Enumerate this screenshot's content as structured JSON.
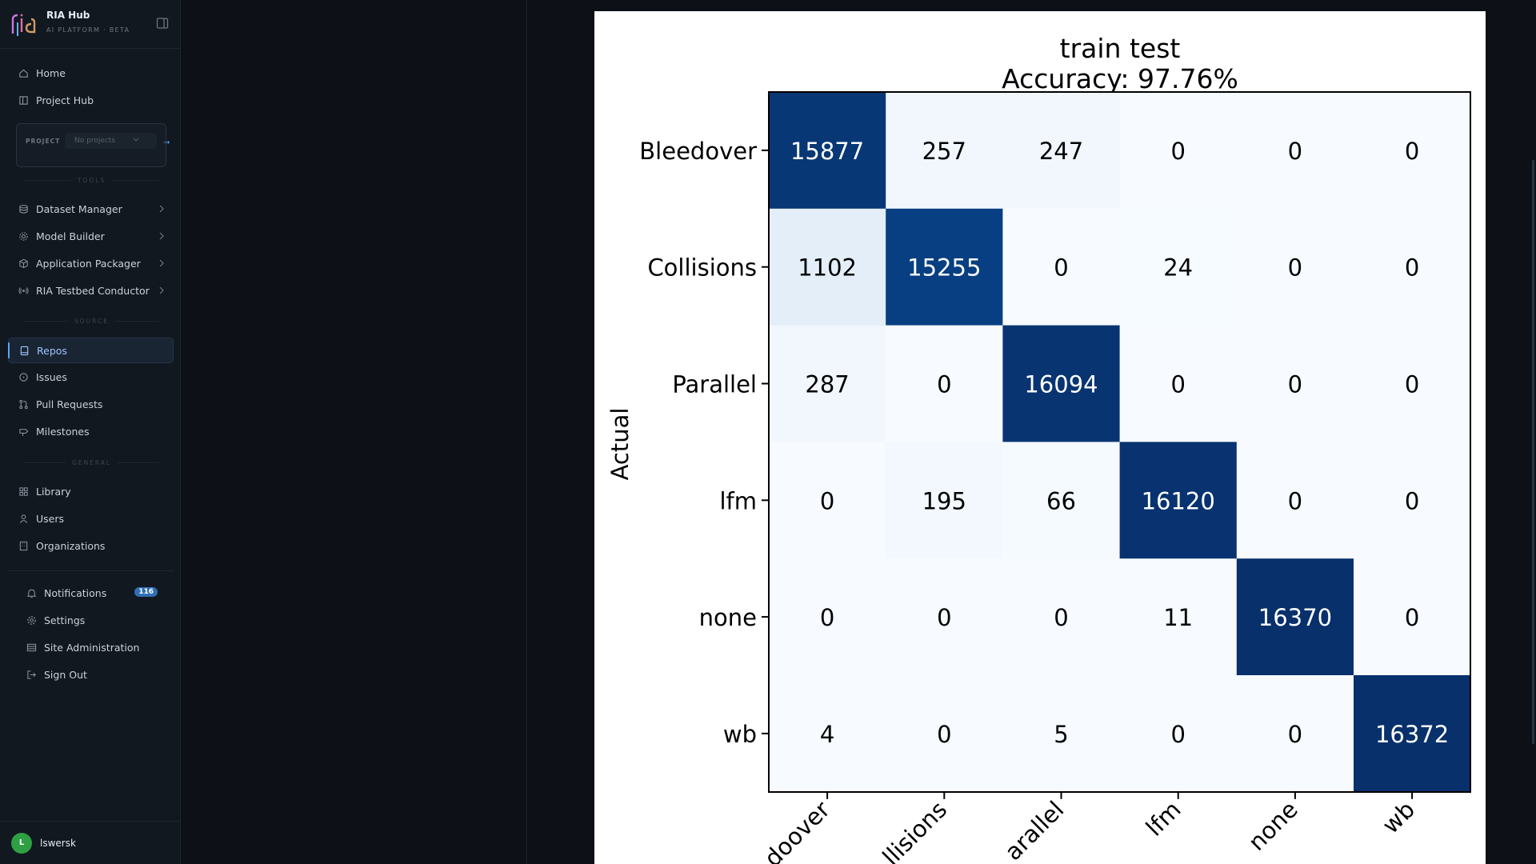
{
  "app": {
    "name": "RIA Hub",
    "subtitle": "AI PLATFORM · BETA"
  },
  "sidebar": {
    "top_items": [
      {
        "label": "Home",
        "icon": "home-icon"
      },
      {
        "label": "Project Hub",
        "icon": "board-icon"
      }
    ],
    "project": {
      "label": "PROJECT",
      "selected": "No projects",
      "go": "→"
    },
    "sections": {
      "tools": "TOOLS",
      "source": "SOURCE",
      "general": "GENERAL"
    },
    "tools_items": [
      {
        "label": "Dataset Manager",
        "icon": "database-icon"
      },
      {
        "label": "Model Builder",
        "icon": "cog-icon"
      },
      {
        "label": "Application Packager",
        "icon": "package-icon"
      },
      {
        "label": "RIA Testbed Conductor",
        "icon": "radio-icon"
      }
    ],
    "source_items": [
      {
        "label": "Repos",
        "icon": "repo-icon",
        "active": true
      },
      {
        "label": "Issues",
        "icon": "issue-icon"
      },
      {
        "label": "Pull Requests",
        "icon": "pull-request-icon"
      },
      {
        "label": "Milestones",
        "icon": "milestone-icon"
      }
    ],
    "general_items": [
      {
        "label": "Library",
        "icon": "grid-icon"
      },
      {
        "label": "Users",
        "icon": "user-icon"
      },
      {
        "label": "Organizations",
        "icon": "building-icon"
      }
    ],
    "bottom_items": [
      {
        "label": "Notifications",
        "icon": "bell-icon",
        "badge": "116"
      },
      {
        "label": "Settings",
        "icon": "gear-icon"
      },
      {
        "label": "Site Administration",
        "icon": "server-icon"
      },
      {
        "label": "Sign Out",
        "icon": "sign-out-icon"
      }
    ],
    "user": {
      "initial": "L",
      "name": "lswersk"
    }
  },
  "colors": {
    "accent": "#58a6ff",
    "badge": "#2f6fb5",
    "avatar": "#2ea043",
    "heatmap_high": "#08306b",
    "heatmap_low": "#f7fbff"
  },
  "chart_data": {
    "type": "heatmap",
    "title": "train test",
    "subtitle": "Accuracy: 97.76%",
    "ylabel": "Actual",
    "rows": [
      "Bleedover",
      "Collisions",
      "Parallel",
      "lfm",
      "none",
      "wb"
    ],
    "cols": [
      "Bleedover",
      "Collisions",
      "Parallel",
      "lfm",
      "none",
      "wb"
    ],
    "col_labels_visible": [
      "doover",
      "llisions",
      "arallel",
      "lfm",
      "none",
      "wb"
    ],
    "values": [
      [
        15877,
        257,
        247,
        0,
        0,
        0
      ],
      [
        1102,
        15255,
        0,
        24,
        0,
        0
      ],
      [
        287,
        0,
        16094,
        0,
        0,
        0
      ],
      [
        0,
        195,
        66,
        16120,
        0,
        0
      ],
      [
        0,
        0,
        0,
        11,
        16370,
        0
      ],
      [
        4,
        0,
        5,
        0,
        0,
        16372
      ]
    ],
    "colormap": "Blues"
  }
}
